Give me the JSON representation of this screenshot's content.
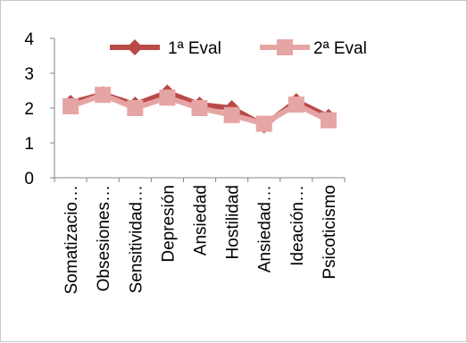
{
  "chart_data": {
    "type": "line",
    "categories": [
      "Somatizacio…",
      "Obsesiones…",
      "Sensitividad…",
      "Depresión",
      "Ansiedad",
      "Hostilidad",
      "Ansiedad…",
      "Ideación…",
      "Psicoticismo"
    ],
    "series": [
      {
        "name": "1ª Eval",
        "values": [
          2.15,
          2.4,
          2.1,
          2.45,
          2.1,
          2.0,
          1.5,
          2.2,
          1.75
        ],
        "color": "#b94a48",
        "marker": "diamond"
      },
      {
        "name": "2ª Eval",
        "values": [
          2.05,
          2.38,
          2.0,
          2.3,
          2.0,
          1.8,
          1.55,
          2.1,
          1.65
        ],
        "color": "#e6a5a5",
        "marker": "square"
      }
    ],
    "y_ticks": [
      "0",
      "1",
      "2",
      "3",
      "4"
    ],
    "ylim": [
      0,
      4
    ],
    "grid": false,
    "legend_position": "top-right",
    "title": "",
    "xlabel": "",
    "ylabel": ""
  }
}
